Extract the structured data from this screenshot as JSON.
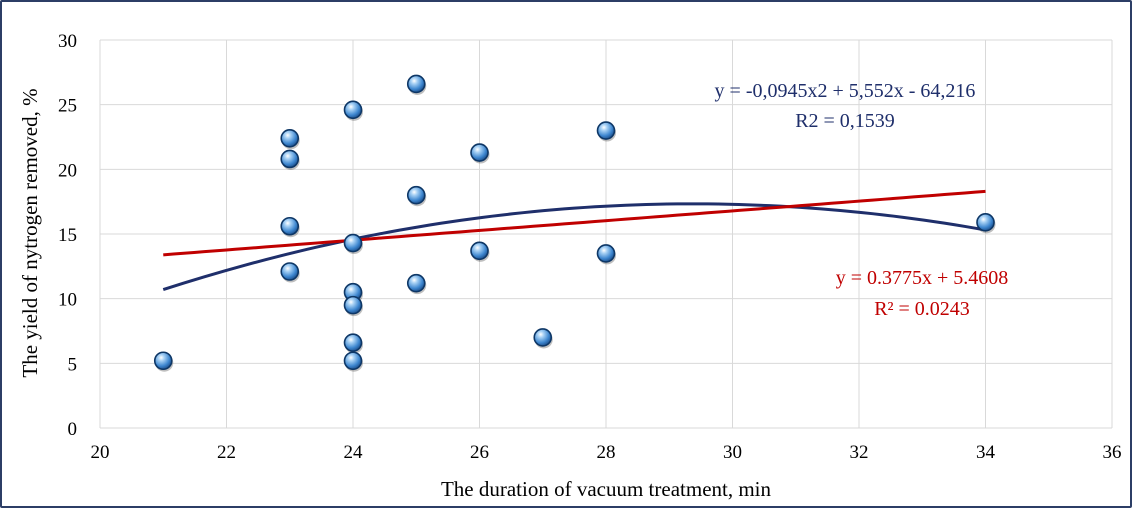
{
  "chart_data": {
    "type": "scatter",
    "xlabel": "The duration of vacuum treatment, min",
    "ylabel": "The yield of nytrogen removed, %",
    "xlim": [
      20,
      36
    ],
    "ylim": [
      0,
      30
    ],
    "xticks": [
      20,
      22,
      24,
      26,
      28,
      30,
      32,
      34,
      36
    ],
    "yticks": [
      0,
      5,
      10,
      15,
      20,
      25,
      30
    ],
    "grid": true,
    "points": [
      {
        "x": 21,
        "y": 5.2
      },
      {
        "x": 23,
        "y": 22.4
      },
      {
        "x": 23,
        "y": 20.8
      },
      {
        "x": 23,
        "y": 15.6
      },
      {
        "x": 23,
        "y": 12.1
      },
      {
        "x": 24,
        "y": 24.6
      },
      {
        "x": 24,
        "y": 14.3
      },
      {
        "x": 24,
        "y": 10.5
      },
      {
        "x": 24,
        "y": 9.5
      },
      {
        "x": 24,
        "y": 6.6
      },
      {
        "x": 24,
        "y": 5.2
      },
      {
        "x": 25,
        "y": 26.6
      },
      {
        "x": 25,
        "y": 18.0
      },
      {
        "x": 25,
        "y": 11.2
      },
      {
        "x": 26,
        "y": 21.3
      },
      {
        "x": 26,
        "y": 13.7
      },
      {
        "x": 27,
        "y": 7.0
      },
      {
        "x": 28,
        "y": 23.0
      },
      {
        "x": 28,
        "y": 13.5
      },
      {
        "x": 34,
        "y": 15.9
      }
    ],
    "trendlines": [
      {
        "kind": "polynomial",
        "coefficients": [
          -0.0945,
          5.552,
          -64.216
        ],
        "x_range": [
          21,
          34
        ],
        "color": "#1f2f6b",
        "equation": "y = -0,0945x2 + 5,552x - 64,216",
        "r2": "R2 = 0,1539"
      },
      {
        "kind": "linear",
        "coefficients": [
          0.3775,
          5.4608
        ],
        "x_range": [
          21,
          34
        ],
        "color": "#c00000",
        "equation": "y = 0.3775x + 5.4608",
        "r2": "R² = 0.0243"
      }
    ],
    "marker_color": "#4a90d9"
  }
}
